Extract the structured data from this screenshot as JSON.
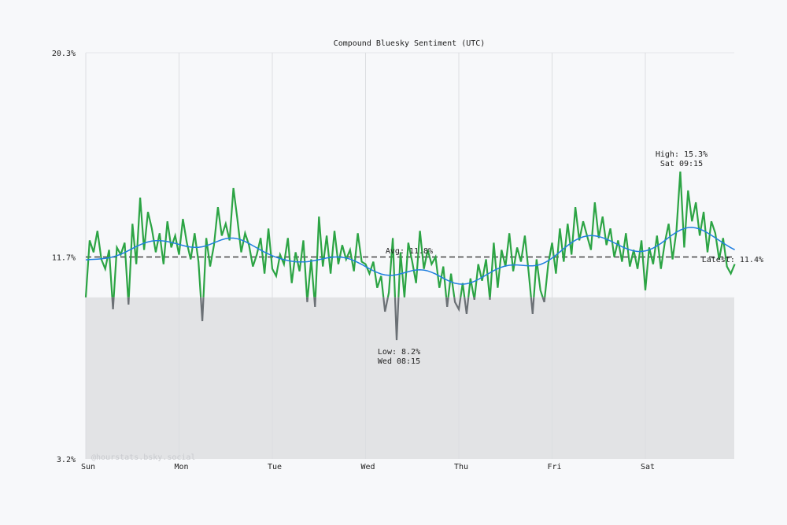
{
  "chart_data": {
    "type": "line",
    "title": "Compound Bluesky Sentiment (UTC)",
    "x_ticks": [
      "Sun",
      "Mon",
      "Tue",
      "Wed",
      "Thu",
      "Fri",
      "Sat"
    ],
    "x_unit": "hourly, starting Sun 00:00",
    "y_ticks": [
      "20.3%",
      "11.7%",
      "3.2%"
    ],
    "ylim": [
      3.2,
      20.3
    ],
    "negative_band_below": 10.0,
    "grid": "vertical at day boundaries",
    "series": [
      {
        "values": [
          10.0,
          12.4,
          11.9,
          12.8,
          11.6,
          11.2,
          12.0,
          9.5,
          12.1,
          11.8,
          12.3,
          9.7,
          13.1,
          11.4,
          14.2,
          12.0,
          13.6,
          12.9,
          11.9,
          12.7,
          11.4,
          13.2,
          12.1,
          12.6,
          11.8,
          13.3,
          12.3,
          11.6,
          12.7,
          11.5,
          9.0,
          12.5,
          11.3,
          12.2,
          13.8,
          12.6,
          13.1,
          12.4,
          14.6,
          13.3,
          11.9,
          12.7,
          12.2,
          11.3,
          11.8,
          12.5,
          11.0,
          12.9,
          11.2,
          10.9,
          11.8,
          11.4,
          12.5,
          10.6,
          11.9,
          11.1,
          12.4,
          9.8,
          11.6,
          9.6,
          13.4,
          11.3,
          12.6,
          11.0,
          12.8,
          11.4,
          12.2,
          11.6,
          12.0,
          11.1,
          12.7,
          11.5,
          11.4,
          11.0,
          11.5,
          10.4,
          10.9,
          9.4,
          10.2,
          12.5,
          8.2,
          11.9,
          10.0,
          12.3,
          11.5,
          10.6,
          12.8,
          11.2,
          12.0,
          11.4,
          11.7,
          10.4,
          11.3,
          9.6,
          11.0,
          9.8,
          9.5,
          10.6,
          9.3,
          10.8,
          9.9,
          11.4,
          10.7,
          11.6,
          9.9,
          12.3,
          10.4,
          12.0,
          11.3,
          12.7,
          11.1,
          12.1,
          11.5,
          12.6,
          11.0,
          9.3,
          11.6,
          10.3,
          9.8,
          11.4,
          12.3,
          11.0,
          12.9,
          11.5,
          13.1,
          11.8,
          13.8,
          12.4,
          13.2,
          12.6,
          12.0,
          14.0,
          12.5,
          13.4,
          12.2,
          12.9,
          11.7,
          12.4,
          11.5,
          12.7,
          11.3,
          12.0,
          11.2,
          12.4,
          10.3,
          12.1,
          11.4,
          12.6,
          11.2,
          12.3,
          13.1,
          11.6,
          12.8,
          15.3,
          12.1,
          14.5,
          13.2,
          14.0,
          12.6,
          13.6,
          11.9,
          13.2,
          12.7,
          11.6,
          12.5,
          11.3,
          11.0,
          11.4
        ]
      }
    ],
    "average": 11.8,
    "annotations": {
      "avg": "Avg: 11.8%",
      "high": "High: 15.3%",
      "high_time": "Sat 09:15",
      "low": "Low: 8.2%",
      "low_time": "Wed 08:15",
      "latest": "Latest: 11.4%"
    },
    "watermark": "@hourstats.bsky.social",
    "colors": {
      "positive": "#2ca444",
      "negative": "#6b7075",
      "trend": "#1f7fe0",
      "band": "#e2e3e5",
      "avg": "#444444"
    }
  }
}
